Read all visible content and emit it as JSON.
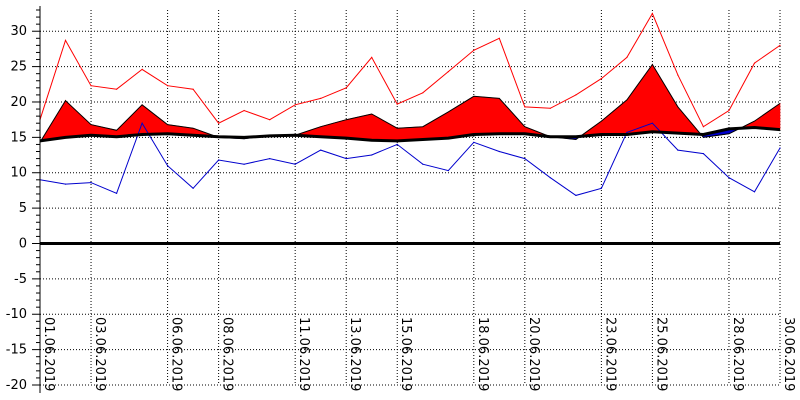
{
  "chart_data": {
    "type": "area",
    "title": "",
    "xlabel": "",
    "ylabel": "",
    "ylim": [
      -20,
      33
    ],
    "y_ticks": [
      30,
      25,
      20,
      15,
      10,
      5,
      0,
      -5,
      -10,
      -15,
      -20
    ],
    "x": [
      "01.06.2019",
      "02.06.2019",
      "03.06.2019",
      "04.06.2019",
      "05.06.2019",
      "06.06.2019",
      "07.06.2019",
      "08.06.2019",
      "09.06.2019",
      "10.06.2019",
      "11.06.2019",
      "12.06.2019",
      "13.06.2019",
      "14.06.2019",
      "15.06.2019",
      "16.06.2019",
      "17.06.2019",
      "18.06.2019",
      "19.06.2019",
      "20.06.2019",
      "21.06.2019",
      "22.06.2019",
      "23.06.2019",
      "24.06.2019",
      "25.06.2019",
      "26.06.2019",
      "27.06.2019",
      "28.06.2019",
      "29.06.2019",
      "30.06.2019"
    ],
    "x_tick_labels": [
      "01.06.2019",
      "03.06.2019",
      "06.06.2019",
      "08.06.2019",
      "11.06.2019",
      "13.06.2019",
      "15.06.2019",
      "18.06.2019",
      "20.06.2019",
      "23.06.2019",
      "25.06.2019",
      "28.06.2019",
      "30.06.2019"
    ],
    "grid": true,
    "series": [
      {
        "color": "#ff0000",
        "style": "thin-line",
        "values": [
          17.5,
          28.7,
          22.3,
          21.8,
          24.6,
          22.3,
          21.8,
          17.0,
          18.8,
          17.5,
          19.6,
          20.5,
          22.0,
          26.3,
          19.7,
          21.3,
          24.3,
          27.3,
          29.0,
          19.3,
          19.1,
          21.0,
          23.3,
          26.3,
          32.5,
          23.8,
          16.5,
          18.8,
          25.5,
          28.0
        ]
      },
      {
        "color": "#ff0000",
        "style": "filled-area-above-reference",
        "values": [
          14.3,
          20.2,
          16.8,
          16.0,
          19.6,
          16.8,
          16.3,
          15.0,
          14.8,
          15.3,
          15.3,
          16.5,
          17.5,
          18.3,
          16.3,
          16.5,
          18.6,
          20.8,
          20.5,
          16.5,
          15.1,
          14.7,
          17.3,
          20.3,
          25.3,
          19.3,
          15.0,
          15.5,
          17.3,
          19.8
        ]
      },
      {
        "color": "#000000",
        "style": "thick-reference-line",
        "values": [
          14.5,
          15.0,
          15.3,
          15.1,
          15.4,
          15.5,
          15.3,
          15.1,
          15.0,
          15.2,
          15.3,
          15.1,
          14.9,
          14.6,
          14.5,
          14.7,
          14.9,
          15.4,
          15.5,
          15.5,
          15.1,
          15.1,
          15.4,
          15.4,
          15.8,
          15.6,
          15.4,
          16.2,
          16.4,
          16.1
        ]
      },
      {
        "color": "#0000cd",
        "style": "thin-line",
        "values": [
          9.0,
          8.4,
          8.6,
          7.1,
          17.0,
          11.0,
          7.8,
          11.8,
          11.2,
          12.0,
          11.2,
          13.2,
          12.0,
          12.5,
          14.0,
          11.2,
          10.3,
          14.3,
          13.0,
          12.0,
          9.3,
          6.8,
          7.8,
          15.7,
          17.0,
          13.2,
          12.7,
          9.3,
          7.3,
          13.5
        ]
      }
    ]
  }
}
